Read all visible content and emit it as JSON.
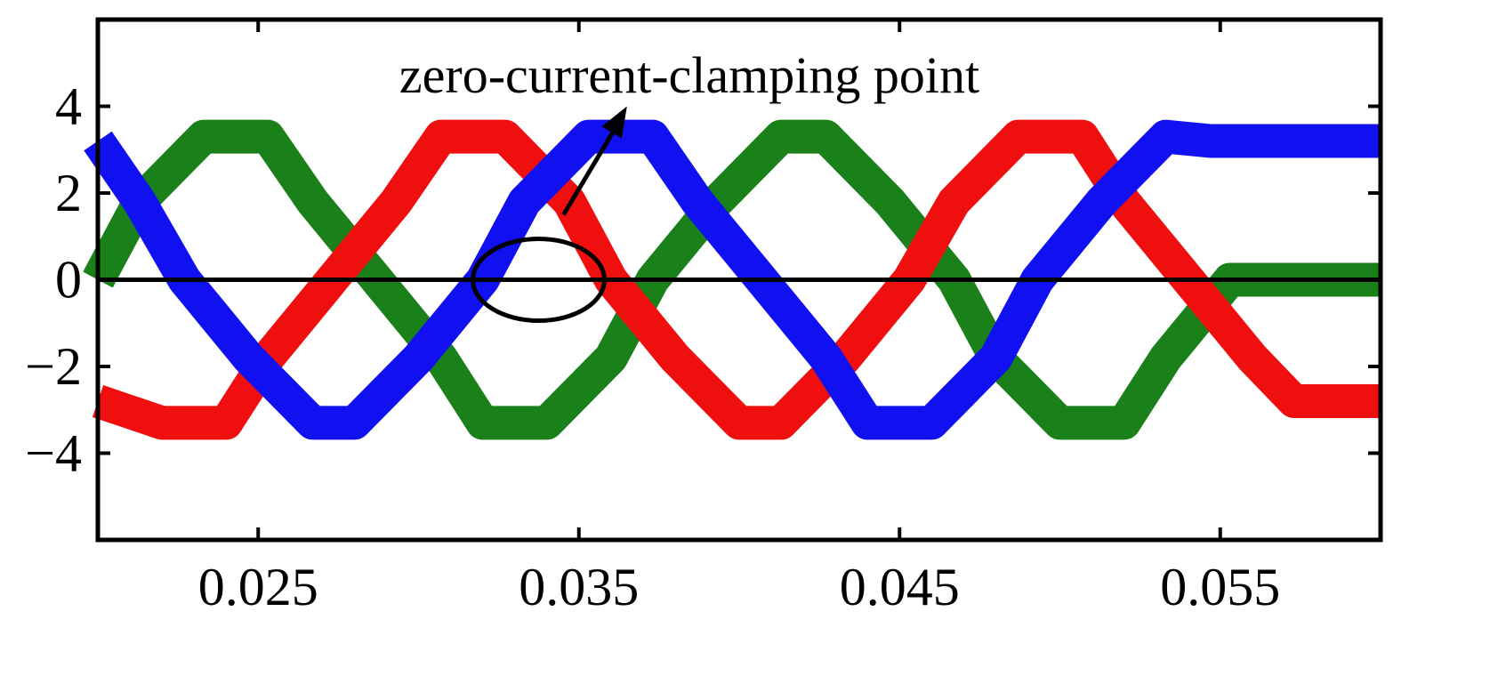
{
  "chart_data": {
    "type": "line",
    "title": "",
    "xlabel": "",
    "ylabel": "",
    "xlim": [
      0.02,
      0.06
    ],
    "ylim": [
      -6,
      6
    ],
    "xticks": [
      0.025,
      0.035,
      0.045,
      0.055
    ],
    "xtick_labels": [
      "0.025",
      "0.035",
      "0.045",
      "0.055"
    ],
    "yticks": [
      4,
      2,
      0,
      -2,
      -4
    ],
    "ytick_labels": [
      "4",
      "2",
      "0",
      "−2",
      "−4"
    ],
    "grid": false,
    "legend": "none",
    "series": [
      {
        "color": "#1a8019",
        "x": [
          0.02,
          0.0213,
          0.0233,
          0.0253,
          0.0267,
          0.0287,
          0.0307,
          0.032,
          0.034,
          0.036,
          0.0373,
          0.0393,
          0.0413,
          0.0427,
          0.0447,
          0.0467,
          0.048,
          0.05,
          0.052,
          0.0533,
          0.0553,
          0.0573,
          0.0587,
          0.06
        ],
        "y": [
          0,
          1.8,
          3.3,
          3.3,
          1.8,
          0,
          -1.8,
          -3.3,
          -3.3,
          -1.8,
          0,
          1.8,
          3.3,
          3.3,
          1.8,
          0,
          -1.8,
          -3.3,
          -3.3,
          -1.8,
          0,
          0,
          0,
          0
        ]
      },
      {
        "color": "#f00f0f",
        "x": [
          0.02,
          0.022,
          0.024,
          0.0253,
          0.0273,
          0.0293,
          0.0307,
          0.0327,
          0.0347,
          0.036,
          0.038,
          0.04,
          0.0413,
          0.0433,
          0.0453,
          0.0467,
          0.0487,
          0.0507,
          0.052,
          0.054,
          0.056,
          0.0573,
          0.0593,
          0.06
        ],
        "y": [
          -2.8,
          -3.3,
          -3.3,
          -1.8,
          0,
          1.8,
          3.3,
          3.3,
          1.8,
          0,
          -1.8,
          -3.3,
          -3.3,
          -1.8,
          0,
          1.8,
          3.3,
          3.3,
          1.8,
          0,
          -1.8,
          -2.8,
          -2.8,
          -2.8
        ]
      },
      {
        "color": "#1010f0",
        "x": [
          0.02,
          0.0213,
          0.0227,
          0.0247,
          0.0267,
          0.028,
          0.03,
          0.032,
          0.0333,
          0.0353,
          0.0373,
          0.0387,
          0.0407,
          0.0427,
          0.044,
          0.046,
          0.048,
          0.0493,
          0.0513,
          0.0533,
          0.0547,
          0.0567,
          0.0587,
          0.06
        ],
        "y": [
          3.2,
          1.8,
          0,
          -1.8,
          -3.3,
          -3.3,
          -1.8,
          0,
          1.8,
          3.3,
          3.3,
          1.8,
          0,
          -1.8,
          -3.3,
          -3.3,
          -1.8,
          0,
          1.8,
          3.3,
          3.2,
          3.2,
          3.2,
          3.2
        ]
      }
    ],
    "annotation": {
      "text": "zero-current-clamping point",
      "target_x": 0.0343,
      "target_y": 0,
      "arrow_tip_x": 0.0365,
      "arrow_tip_y": 4.0
    },
    "reference_line_y": 0
  }
}
